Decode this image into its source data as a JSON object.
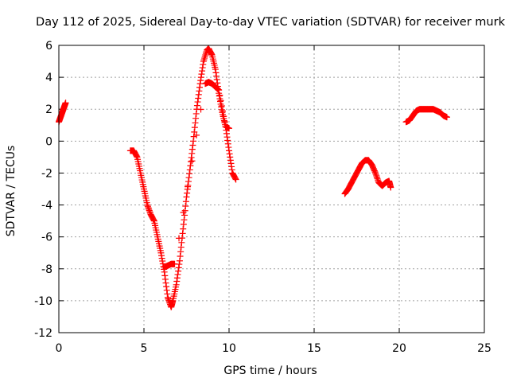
{
  "chart_data": {
    "type": "scatter",
    "title": "Day 112 of 2025, Sidereal Day-to-day VTEC variation (SDTVAR) for receiver murk",
    "xlabel": "GPS time / hours",
    "ylabel": "SDTVAR / TECUs",
    "xlim": [
      0,
      25
    ],
    "ylim": [
      -12,
      6
    ],
    "xticks": [
      0,
      5,
      10,
      15,
      20,
      25
    ],
    "yticks": [
      -12,
      -10,
      -8,
      -6,
      -4,
      -2,
      0,
      2,
      4,
      6
    ],
    "grid": true,
    "marker": "+",
    "color": "#ff0000",
    "series": [
      {
        "name": "seg1",
        "x": [
          0.0,
          0.1,
          0.2,
          0.3,
          0.4
        ],
        "y": [
          1.2,
          1.5,
          1.8,
          2.1,
          2.4
        ]
      },
      {
        "name": "seg2",
        "x": [
          4.2,
          4.4,
          4.6,
          4.8,
          5.0,
          5.2,
          5.4,
          5.6,
          5.8,
          6.0,
          6.2,
          6.4,
          6.6,
          6.7,
          6.9,
          7.1,
          7.3,
          7.5,
          7.7,
          7.9,
          8.1,
          8.3,
          8.5,
          8.7,
          8.8,
          9.0,
          9.2,
          9.4,
          9.6,
          9.8,
          10.0,
          10.2,
          10.4
        ],
        "y": [
          -0.6,
          -0.6,
          -1.0,
          -2.0,
          -3.0,
          -4.0,
          -4.6,
          -5.0,
          -6.0,
          -7.0,
          -8.2,
          -9.8,
          -10.4,
          -10.0,
          -9.0,
          -7.5,
          -5.5,
          -3.5,
          -1.8,
          0.0,
          2.0,
          3.6,
          5.0,
          5.7,
          5.8,
          5.4,
          4.5,
          3.0,
          1.8,
          0.9,
          -0.6,
          -2.0,
          -2.4
        ]
      },
      {
        "name": "seg3",
        "x": [
          6.2,
          6.4,
          6.6,
          6.8,
          8.6,
          8.8,
          9.0,
          9.2,
          9.4,
          9.8,
          10.0
        ],
        "y": [
          -7.9,
          -7.8,
          -7.7,
          -7.7,
          3.6,
          3.7,
          3.6,
          3.4,
          3.2,
          0.9,
          0.8
        ]
      },
      {
        "name": "seg4",
        "x": [
          16.8,
          17.0,
          17.2,
          17.4,
          17.6,
          17.8,
          18.0,
          18.2,
          18.4,
          18.6,
          18.8,
          19.0,
          19.2,
          19.4,
          19.5
        ],
        "y": [
          -3.3,
          -3.0,
          -2.6,
          -2.2,
          -1.8,
          -1.4,
          -1.2,
          -1.2,
          -1.5,
          -2.0,
          -2.6,
          -2.8,
          -2.6,
          -2.5,
          -2.9
        ]
      },
      {
        "name": "seg5",
        "x": [
          20.4,
          20.6,
          20.8,
          21.0,
          21.2,
          21.4,
          21.6,
          21.8,
          22.0,
          22.2,
          22.4,
          22.6,
          22.8
        ],
        "y": [
          1.2,
          1.3,
          1.6,
          1.9,
          2.0,
          2.0,
          2.0,
          2.0,
          2.0,
          1.9,
          1.8,
          1.6,
          1.5
        ]
      }
    ]
  }
}
